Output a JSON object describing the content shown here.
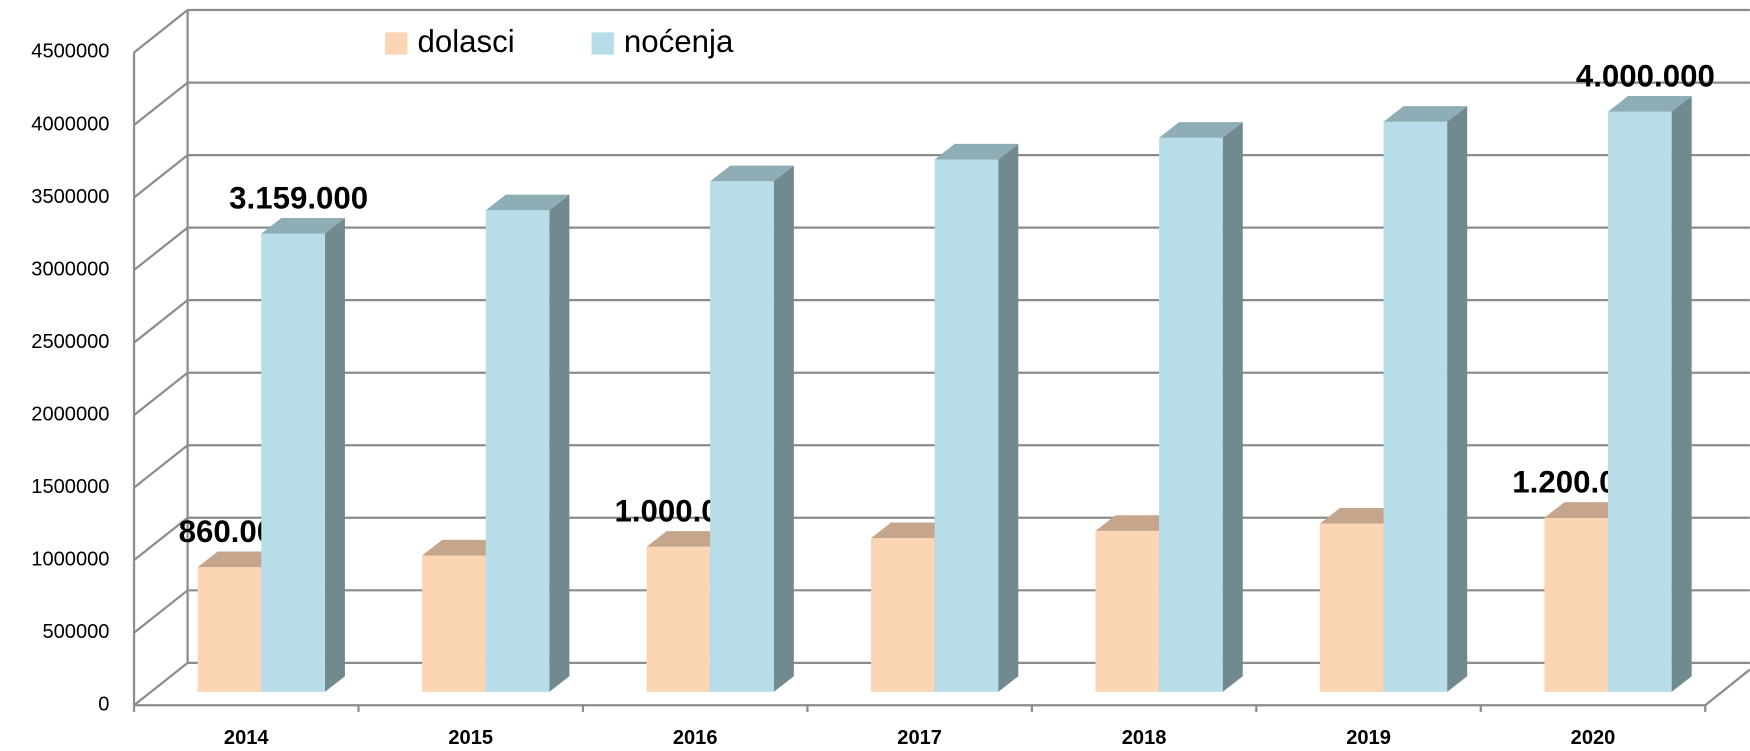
{
  "chart_data": {
    "type": "bar3d",
    "categories": [
      "2014",
      "2015",
      "2016",
      "2017",
      "2018",
      "2019",
      "2020"
    ],
    "series": [
      {
        "name": "dolasci",
        "color": "#fcd5b5",
        "values": [
          860000,
          940000,
          1000000,
          1060000,
          1110000,
          1160000,
          1200000
        ],
        "value_labels": [
          "860.000",
          null,
          "1.000.000",
          null,
          null,
          null,
          "1.200.000"
        ]
      },
      {
        "name": "noćenja",
        "color": "#b7dee8",
        "values": [
          3159000,
          3320000,
          3520000,
          3670000,
          3820000,
          3930000,
          4000000
        ],
        "value_labels": [
          "3.159.000",
          null,
          null,
          null,
          null,
          null,
          "4.000.000"
        ]
      }
    ],
    "ylim": [
      0,
      4500000
    ],
    "yticks": [
      0,
      500000,
      1000000,
      1500000,
      2000000,
      2500000,
      3000000,
      3500000,
      4000000,
      4500000
    ],
    "grid": true
  }
}
